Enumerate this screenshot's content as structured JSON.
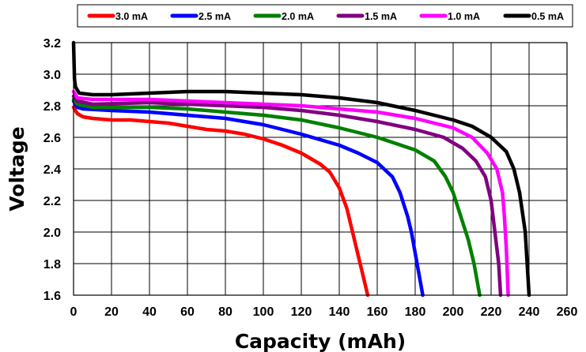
{
  "chart_data": {
    "type": "line",
    "title": "",
    "xlabel": "Capacity (mAh)",
    "ylabel": "Voltage",
    "xlim": [
      0,
      260
    ],
    "ylim": [
      1.6,
      3.2
    ],
    "xticks": [
      0,
      20,
      40,
      60,
      80,
      100,
      120,
      140,
      160,
      180,
      200,
      220,
      240,
      260
    ],
    "yticks": [
      1.6,
      1.8,
      2.0,
      2.2,
      2.4,
      2.6,
      2.8,
      3.0,
      3.2
    ],
    "xtick_labels": [
      "0",
      "20",
      "40",
      "60",
      "80",
      "100",
      "120",
      "140",
      "160",
      "180",
      "200",
      "220",
      "240",
      "260"
    ],
    "ytick_labels": [
      "1.6",
      "1.8",
      "2.0",
      "2.2",
      "2.4",
      "2.6",
      "2.8",
      "3.0",
      "3.2"
    ],
    "grid": true,
    "legend_position": "top",
    "series": [
      {
        "name": "3.0 mA",
        "color": "#ff0000",
        "points": [
          [
            0,
            2.79
          ],
          [
            2,
            2.75
          ],
          [
            5,
            2.73
          ],
          [
            10,
            2.72
          ],
          [
            20,
            2.71
          ],
          [
            30,
            2.71
          ],
          [
            40,
            2.7
          ],
          [
            50,
            2.69
          ],
          [
            60,
            2.67
          ],
          [
            70,
            2.65
          ],
          [
            80,
            2.64
          ],
          [
            90,
            2.62
          ],
          [
            100,
            2.59
          ],
          [
            110,
            2.55
          ],
          [
            120,
            2.5
          ],
          [
            130,
            2.43
          ],
          [
            135,
            2.38
          ],
          [
            140,
            2.28
          ],
          [
            144,
            2.15
          ],
          [
            147,
            2.0
          ],
          [
            150,
            1.85
          ],
          [
            152,
            1.75
          ],
          [
            155,
            1.6
          ]
        ]
      },
      {
        "name": "2.5 mA",
        "color": "#0000ff",
        "points": [
          [
            0,
            2.83
          ],
          [
            2,
            2.79
          ],
          [
            5,
            2.78
          ],
          [
            20,
            2.77
          ],
          [
            40,
            2.76
          ],
          [
            60,
            2.74
          ],
          [
            80,
            2.72
          ],
          [
            100,
            2.68
          ],
          [
            120,
            2.62
          ],
          [
            140,
            2.55
          ],
          [
            150,
            2.5
          ],
          [
            160,
            2.44
          ],
          [
            168,
            2.35
          ],
          [
            172,
            2.25
          ],
          [
            176,
            2.1
          ],
          [
            178,
            2.0
          ],
          [
            181,
            1.8
          ],
          [
            184,
            1.6
          ]
        ]
      },
      {
        "name": "2.0 mA",
        "color": "#008000",
        "points": [
          [
            0,
            2.84
          ],
          [
            2,
            2.81
          ],
          [
            10,
            2.79
          ],
          [
            20,
            2.79
          ],
          [
            40,
            2.79
          ],
          [
            60,
            2.78
          ],
          [
            80,
            2.76
          ],
          [
            100,
            2.74
          ],
          [
            120,
            2.71
          ],
          [
            140,
            2.66
          ],
          [
            160,
            2.6
          ],
          [
            180,
            2.52
          ],
          [
            190,
            2.45
          ],
          [
            196,
            2.35
          ],
          [
            200,
            2.25
          ],
          [
            204,
            2.1
          ],
          [
            208,
            1.95
          ],
          [
            211,
            1.8
          ],
          [
            214,
            1.6
          ]
        ]
      },
      {
        "name": "1.5 mA",
        "color": "#800080",
        "points": [
          [
            0,
            2.86
          ],
          [
            2,
            2.83
          ],
          [
            10,
            2.81
          ],
          [
            40,
            2.82
          ],
          [
            60,
            2.81
          ],
          [
            80,
            2.8
          ],
          [
            100,
            2.79
          ],
          [
            120,
            2.77
          ],
          [
            140,
            2.74
          ],
          [
            160,
            2.7
          ],
          [
            180,
            2.65
          ],
          [
            195,
            2.6
          ],
          [
            205,
            2.53
          ],
          [
            212,
            2.45
          ],
          [
            217,
            2.35
          ],
          [
            220,
            2.2
          ],
          [
            222,
            2.0
          ],
          [
            224,
            1.8
          ],
          [
            225,
            1.6
          ]
        ]
      },
      {
        "name": "1.0 mA",
        "color": "#ff00ff",
        "points": [
          [
            0,
            2.89
          ],
          [
            2,
            2.85
          ],
          [
            10,
            2.84
          ],
          [
            40,
            2.84
          ],
          [
            60,
            2.83
          ],
          [
            80,
            2.82
          ],
          [
            100,
            2.81
          ],
          [
            120,
            2.8
          ],
          [
            140,
            2.78
          ],
          [
            160,
            2.76
          ],
          [
            180,
            2.72
          ],
          [
            200,
            2.66
          ],
          [
            210,
            2.6
          ],
          [
            218,
            2.5
          ],
          [
            223,
            2.4
          ],
          [
            226,
            2.25
          ],
          [
            227,
            2.1
          ],
          [
            228,
            1.9
          ],
          [
            229,
            1.6
          ]
        ]
      },
      {
        "name": "0.5 mA",
        "color": "#000000",
        "points": [
          [
            0,
            3.2
          ],
          [
            0.5,
            2.97
          ],
          [
            1,
            2.92
          ],
          [
            3,
            2.88
          ],
          [
            10,
            2.87
          ],
          [
            20,
            2.87
          ],
          [
            40,
            2.88
          ],
          [
            60,
            2.89
          ],
          [
            80,
            2.89
          ],
          [
            100,
            2.88
          ],
          [
            120,
            2.87
          ],
          [
            140,
            2.85
          ],
          [
            160,
            2.82
          ],
          [
            180,
            2.77
          ],
          [
            200,
            2.71
          ],
          [
            210,
            2.67
          ],
          [
            220,
            2.6
          ],
          [
            228,
            2.51
          ],
          [
            232,
            2.4
          ],
          [
            235,
            2.25
          ],
          [
            238,
            2.0
          ],
          [
            239,
            1.8
          ],
          [
            240,
            1.6
          ]
        ]
      }
    ]
  }
}
